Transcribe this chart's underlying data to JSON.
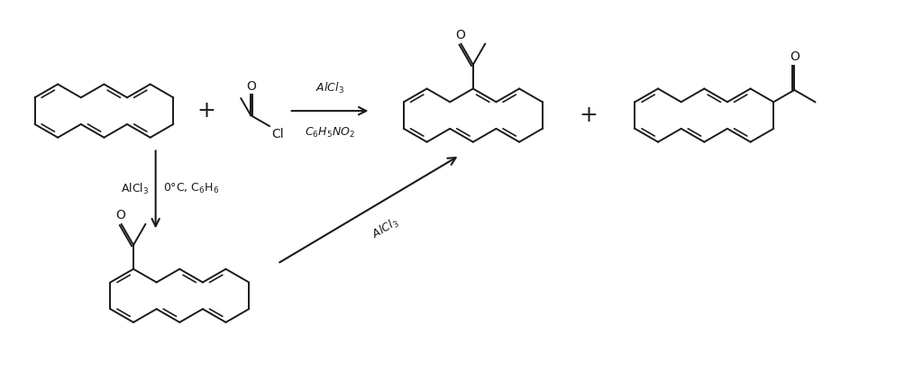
{
  "background_color": "#ffffff",
  "line_color": "#1a1a1a",
  "line_width": 1.4,
  "text_color": "#1a1a1a",
  "figsize": [
    10.24,
    4.12
  ],
  "dpi": 100,
  "labels": {
    "arrow1_top": "AlCl$_3$",
    "arrow1_bot": "C$_6$H$_5$NO$_2$",
    "arrow2_left": "AlCl$_3$",
    "arrow2_right": "0°C, C$_6$H$_6$",
    "arrow3": "AlCl$_3$",
    "plus1": "+",
    "plus2": "+"
  }
}
